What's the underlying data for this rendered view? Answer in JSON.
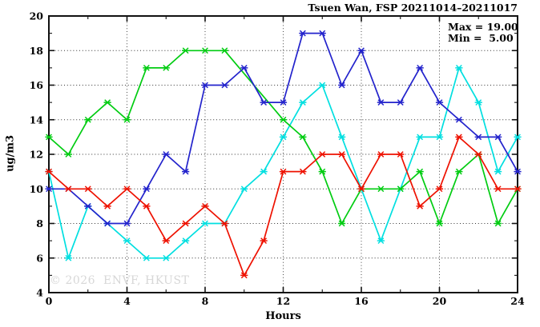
{
  "header": {
    "title": "Tsuen Wan, FSP 20211014–20211017"
  },
  "legend": {
    "max_label": "Max = 19.00",
    "min_label": "Min =  5.00"
  },
  "watermark": "© 2026  ENVF, HKUST",
  "chart_data": {
    "type": "line",
    "title": "Tsuen Wan, FSP 20211014–20211017",
    "xlabel": "Hours",
    "ylabel": "ug/m3",
    "xlim": [
      0,
      24
    ],
    "ylim": [
      4,
      20
    ],
    "x_major_ticks": [
      0,
      4,
      8,
      12,
      16,
      20,
      24
    ],
    "x_minor_ticks": [
      2,
      6,
      10,
      14,
      18,
      22
    ],
    "y_major_ticks": [
      4,
      6,
      8,
      10,
      12,
      14,
      16,
      18,
      20
    ],
    "y_minor_ticks": [
      5,
      7,
      9,
      11,
      13,
      15,
      17,
      19
    ],
    "grid": true,
    "legend_position": "top-right-inside",
    "stats": {
      "max": 19.0,
      "min": 5.0
    },
    "marker": "asterisk",
    "x": [
      0,
      1,
      2,
      3,
      4,
      5,
      6,
      7,
      8,
      9,
      10,
      11,
      12,
      13,
      14,
      15,
      16,
      17,
      18,
      19,
      20,
      21,
      22,
      23,
      24
    ],
    "series": [
      {
        "name": "line-cyan",
        "color": "#00dfe0",
        "values": [
          11,
          6,
          9,
          8,
          7,
          6,
          6,
          7,
          8,
          8,
          10,
          11,
          13,
          15,
          16,
          13,
          10,
          7,
          10,
          13,
          13,
          17,
          15,
          11,
          13
        ]
      },
      {
        "name": "line-green",
        "color": "#00cc11",
        "values": [
          13,
          12,
          14,
          15,
          14,
          17,
          17,
          18,
          18,
          18,
          null,
          null,
          14,
          13,
          11,
          8,
          10,
          10,
          10,
          11,
          8,
          11,
          12,
          8,
          10
        ]
      },
      {
        "name": "line-blue",
        "color": "#2323cc",
        "values": [
          10,
          10,
          9,
          8,
          8,
          10,
          12,
          11,
          16,
          16,
          17,
          15,
          15,
          19,
          19,
          16,
          18,
          15,
          15,
          17,
          15,
          14,
          13,
          13,
          11
        ]
      },
      {
        "name": "line-red",
        "color": "#ee1100",
        "values": [
          11,
          10,
          10,
          9,
          10,
          9,
          7,
          8,
          9,
          8,
          5,
          7,
          11,
          11,
          12,
          12,
          10,
          12,
          12,
          9,
          10,
          13,
          12,
          10,
          10
        ]
      }
    ]
  }
}
